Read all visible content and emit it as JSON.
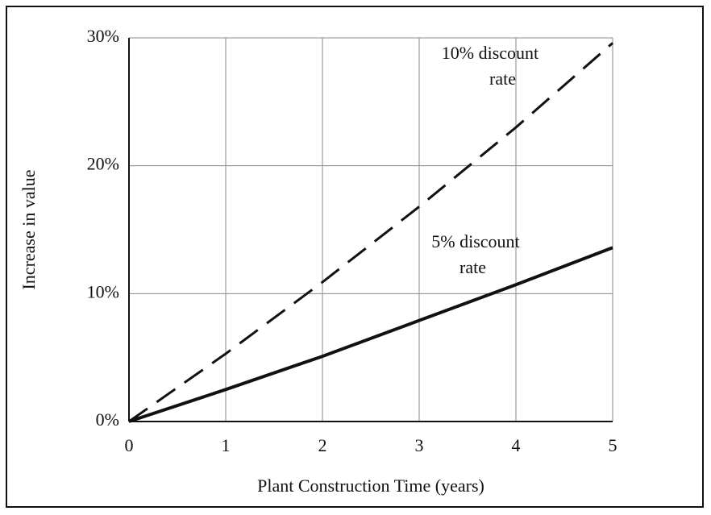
{
  "chart_data": {
    "type": "line",
    "xlabel": "Plant Construction Time (years)",
    "ylabel": "Increase in value",
    "x": [
      0,
      1,
      2,
      3,
      4,
      5
    ],
    "series": [
      {
        "color": "#111111",
        "dash": true,
        "values": [
          0,
          5.3,
          10.9,
          16.8,
          23.0,
          29.6
        ]
      },
      {
        "color": "#111111",
        "dash": false,
        "values": [
          0,
          2.5,
          5.1,
          7.9,
          10.7,
          13.6
        ]
      }
    ],
    "annotations": [
      [
        "10% discount",
        "rate"
      ],
      [
        "5% discount",
        "rate"
      ]
    ],
    "xlim": [
      0,
      5
    ],
    "xticks": [
      0,
      1,
      2,
      3,
      4,
      5
    ],
    "ylim": [
      0,
      30
    ],
    "yticks": [
      {
        "value": 0,
        "label": "0%"
      },
      {
        "value": 10,
        "label": "10%"
      },
      {
        "value": 20,
        "label": "20%"
      },
      {
        "value": 30,
        "label": "30%"
      }
    ],
    "grid": true
  }
}
